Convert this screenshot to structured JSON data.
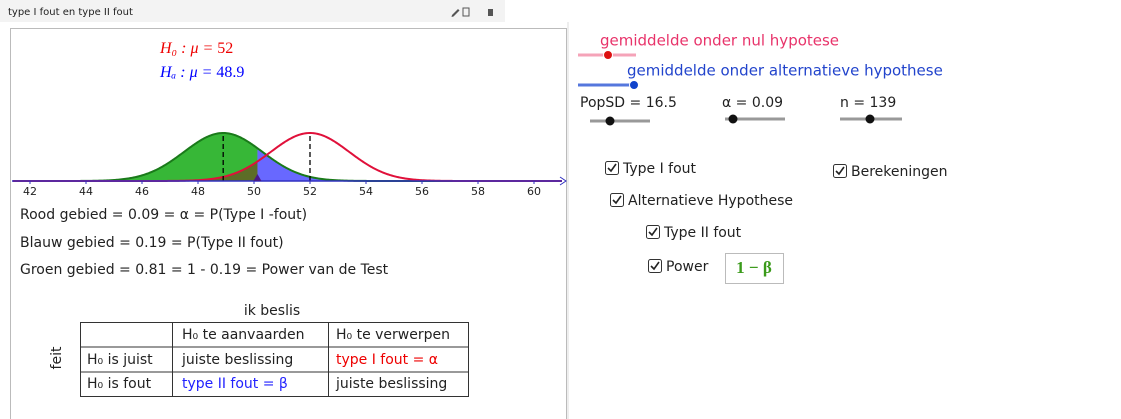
{
  "window_title": "type I fout en type II fout",
  "graphics": {
    "h0": {
      "label": "H₀ : μ = ",
      "value": 52
    },
    "ha": {
      "label": "Hₐ : μ = ",
      "value": 48.9
    },
    "axis_ticks": [
      42,
      44,
      46,
      48,
      50,
      52,
      54,
      56,
      58,
      60
    ],
    "results": [
      "Rood gebied = 0.09 = α = P(Type I -fout)",
      "Blauw gebied = 0.19 = P(Type II fout)",
      "Groen gebied = 0.81 = 1 - 0.19 = Power van de Test"
    ],
    "table": {
      "title": "ik beslis",
      "side": "feit",
      "header": [
        "H₀ te aanvaarden",
        "H₀ te verwerpen"
      ],
      "rows": [
        [
          "H₀ is juist",
          "juiste beslissing",
          "type I fout = α"
        ],
        [
          "H₀ is fout",
          "type II fout = β",
          "juiste beslissing"
        ]
      ]
    }
  },
  "controls": {
    "slider_mu0": "gemiddelde onder nul hypotese",
    "slider_mua": "gemiddelde onder alternatieve hypothese",
    "popsd": {
      "label": "PopSD = ",
      "value": 16.5
    },
    "alpha": {
      "label": "α = ",
      "value": 0.09
    },
    "n": {
      "label": "n = ",
      "value": 139
    },
    "checkboxes": [
      "Type I fout",
      "Berekeningen",
      "Alternatieve Hypothese",
      "Type II fout",
      "Power"
    ],
    "power_formula": "1 − β"
  }
}
